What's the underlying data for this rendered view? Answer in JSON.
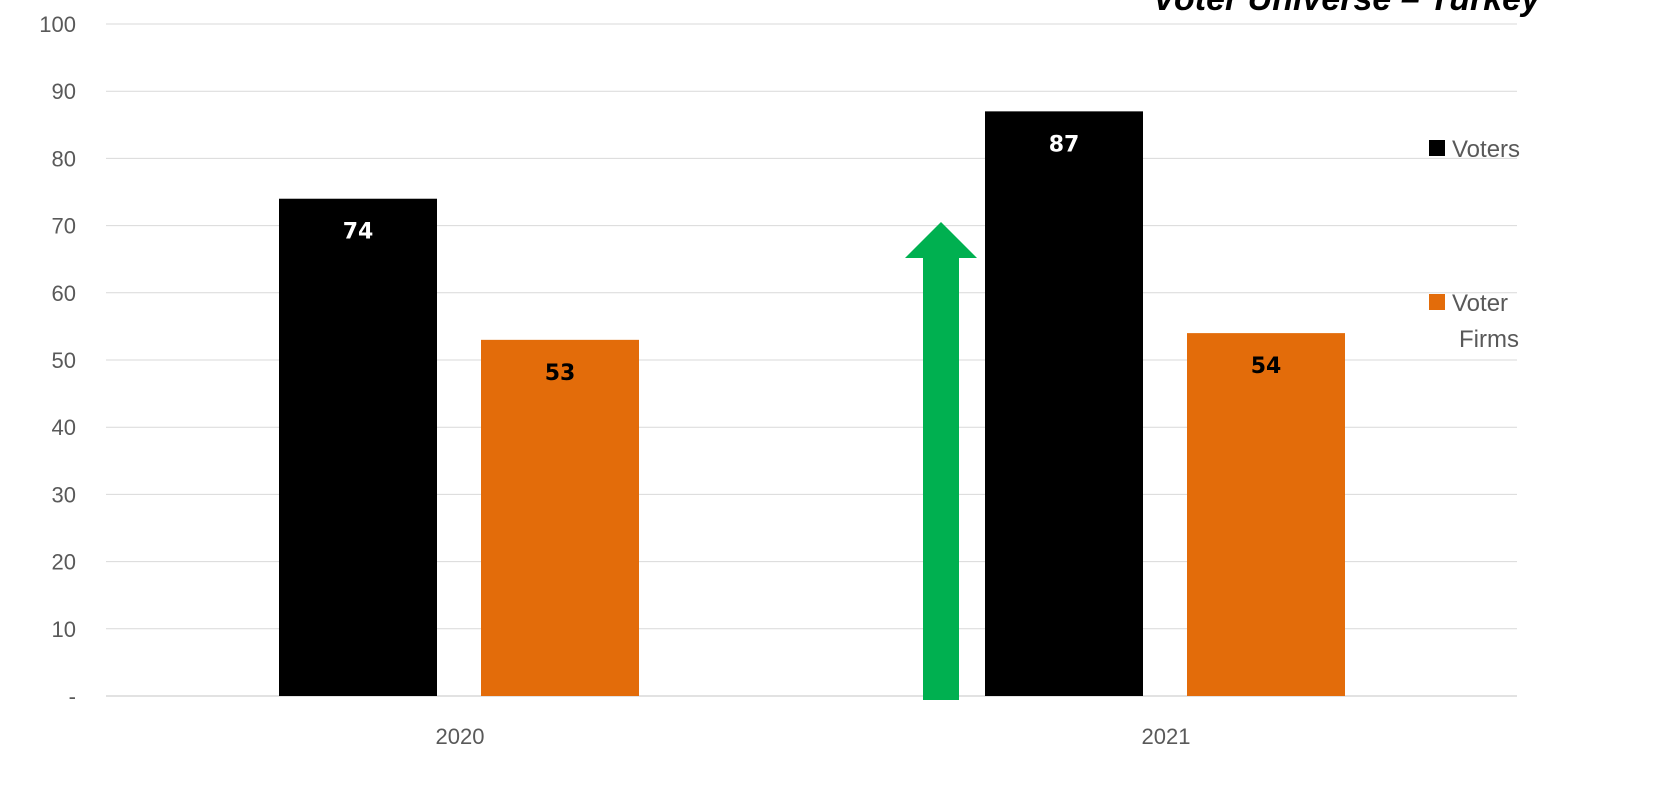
{
  "chart_data": {
    "type": "bar",
    "title": "Voter Universe – Turkey",
    "categories": [
      "2020",
      "2021"
    ],
    "series": [
      {
        "name": "Voters",
        "values": [
          74,
          87
        ],
        "color": "#000000",
        "label_color": "#ffffff"
      },
      {
        "name": "Voter Firms",
        "values": [
          53,
          54
        ],
        "color": "#e36c0a",
        "label_color": "#000000"
      }
    ],
    "ylim": [
      0,
      100
    ],
    "yticks": [
      0,
      10,
      20,
      30,
      40,
      50,
      60,
      70,
      80,
      90,
      100
    ],
    "ytick_labels": [
      "-",
      "10",
      "20",
      "30",
      "40",
      "50",
      "60",
      "70",
      "80",
      "90",
      "100"
    ],
    "grid": true,
    "legend": "right",
    "legend_lines": [
      [
        "Voters"
      ],
      [
        "Voter",
        "Firms"
      ]
    ],
    "annotation": {
      "type": "up-arrow",
      "color": "#00b050"
    }
  }
}
